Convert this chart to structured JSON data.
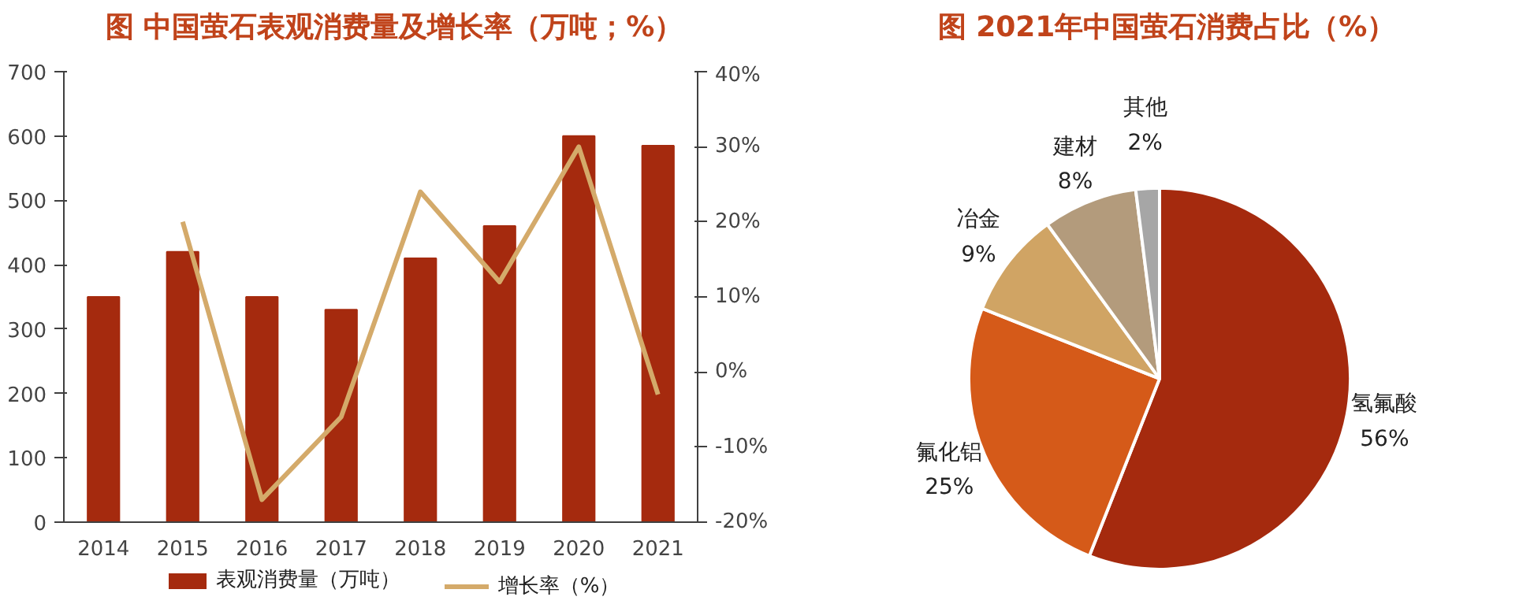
{
  "chart_data": [
    {
      "type": "bar",
      "title": "图 中国萤石表观消费量及增长率（万吨；%）",
      "categories": [
        "2014",
        "2015",
        "2016",
        "2017",
        "2018",
        "2019",
        "2020",
        "2021"
      ],
      "series": [
        {
          "name": "表观消费量（万吨）",
          "color": "#a52a0e",
          "values": [
            350,
            420,
            350,
            330,
            410,
            460,
            600,
            585
          ]
        },
        {
          "name": "增长率（%）",
          "type": "line",
          "axis": "y2",
          "color": "#d4aa6a",
          "values": [
            null,
            20,
            -17,
            -6,
            24,
            12,
            30,
            -3
          ]
        }
      ],
      "ylim": [
        0,
        700
      ],
      "yticks": [
        0,
        100,
        200,
        300,
        400,
        500,
        600,
        700
      ],
      "y2lim": [
        -20,
        40
      ],
      "y2ticks": [
        {
          "value": -20,
          "label": "-20%"
        },
        {
          "value": -10,
          "label": "-10%"
        },
        {
          "value": 0,
          "label": "0%"
        },
        {
          "value": 10,
          "label": "10%"
        },
        {
          "value": 20,
          "label": "20%"
        },
        {
          "value": 30,
          "label": "30%"
        },
        {
          "value": 40,
          "label": "40%"
        }
      ],
      "grid": false,
      "legend": "bottom",
      "marker": "none",
      "line_style": "solid"
    },
    {
      "type": "pie",
      "title": "图 2021年中国萤石消费占比（%）",
      "categories": [
        "氢氟酸",
        "氟化铝",
        "冶金",
        "建材",
        "其他"
      ],
      "values": [
        56,
        25,
        9,
        8,
        2
      ],
      "colors": [
        "#a52a0e",
        "#d55a19",
        "#d0a464",
        "#b39b7c",
        "#a6a6a6"
      ],
      "value_labels": [
        "56%",
        "25%",
        "9%",
        "8%",
        "2%"
      ]
    }
  ]
}
